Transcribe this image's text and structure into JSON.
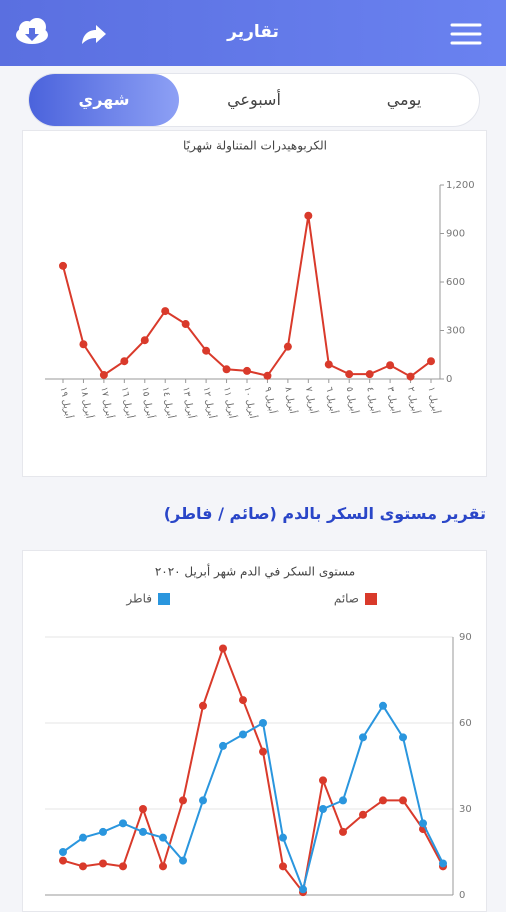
{
  "header": {
    "title": "تقارير"
  },
  "tabs": [
    "يومي",
    "أسبوعي",
    "شهري"
  ],
  "active_tab": 2,
  "section_title": "تقرير مستوى السكر بالدم (صائم / فاطر)",
  "chart_data": [
    {
      "type": "line",
      "title": "الكربوهيدرات المتناولة شهريًا",
      "categories": [
        "أبريل ١",
        "أبريل ٢",
        "أبريل ٣",
        "أبريل ٤",
        "أبريل ٥",
        "أبريل ٦",
        "أبريل ٧",
        "أبريل ٨",
        "أبريل ٩",
        "أبريل ١٠",
        "أبريل ١١",
        "أبريل ١٢",
        "أبريل ١٣",
        "أبريل ١٤",
        "أبريل ١٥",
        "أبريل ١٦",
        "أبريل ١٧",
        "أبريل ١٨",
        "أبريل ١٩"
      ],
      "values": [
        110,
        15,
        85,
        30,
        30,
        90,
        1010,
        200,
        20,
        50,
        60,
        175,
        340,
        420,
        240,
        110,
        25,
        215,
        700
      ],
      "color": "#d93a2b",
      "ylim": [
        0,
        1200
      ],
      "yticks": [
        0,
        300,
        600,
        900,
        {
          "value": 1200,
          "label": "1,200"
        }
      ],
      "grid": false
    },
    {
      "type": "line",
      "title": "مستوى السكر في الدم  شهر أبريل ٢٠٢٠",
      "series": [
        {
          "name": "صائم",
          "color": "#d93a2b",
          "values": [
            10,
            23,
            33,
            33,
            28,
            22,
            40,
            1,
            10,
            50,
            68,
            86,
            66,
            33,
            10,
            30,
            10,
            11,
            10,
            12
          ]
        },
        {
          "name": "فاطر",
          "color": "#2a96de",
          "values": [
            11,
            25,
            55,
            66,
            55,
            33,
            30,
            2,
            20,
            60,
            56,
            52,
            33,
            12,
            20,
            22,
            25,
            22,
            20,
            15
          ]
        }
      ],
      "ylim": [
        0,
        90
      ],
      "yticks": [
        0,
        30,
        60,
        90
      ],
      "grid": true
    }
  ]
}
